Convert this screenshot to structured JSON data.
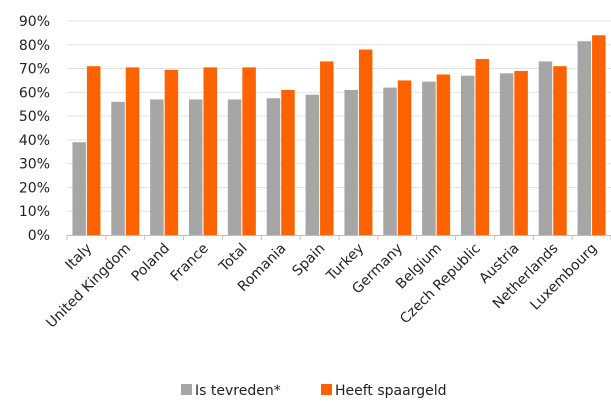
{
  "chart_data": {
    "type": "bar",
    "categories": [
      "Italy",
      "United Kingdom",
      "Poland",
      "France",
      "Total",
      "Romania",
      "Spain",
      "Turkey",
      "Germany",
      "Belgium",
      "Czech Republic",
      "Austria",
      "Netherlands",
      "Luxembourg"
    ],
    "series": [
      {
        "name": "Is tevreden*",
        "color": "#a6a6a6",
        "values": [
          39,
          56,
          57,
          57,
          57,
          57.5,
          59,
          61,
          62,
          64.5,
          67,
          68,
          73,
          81.5
        ]
      },
      {
        "name": "Heeft spaargeld",
        "color": "#ff6200",
        "values": [
          71,
          70.5,
          69.5,
          70.5,
          70.5,
          61,
          73,
          78,
          65,
          67.5,
          74,
          69,
          71,
          84
        ]
      }
    ],
    "ylim": [
      0,
      90
    ],
    "yticks": [
      "0%",
      "10%",
      "20%",
      "30%",
      "40%",
      "50%",
      "60%",
      "70%",
      "80%",
      "90%"
    ],
    "legend_position": "bottom",
    "grid": true
  }
}
